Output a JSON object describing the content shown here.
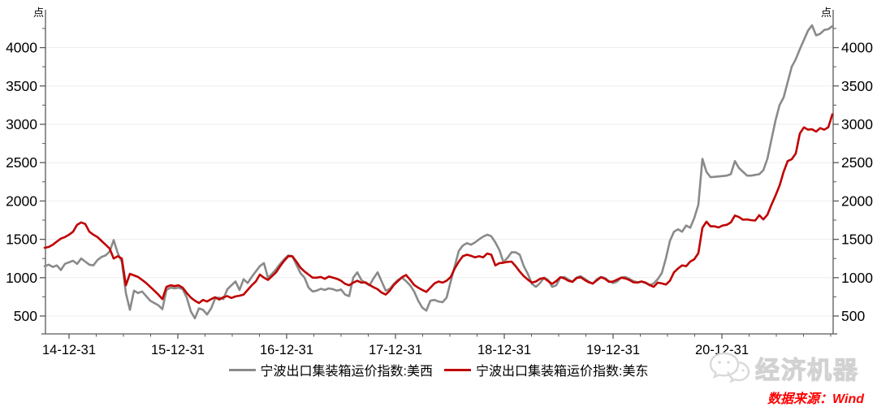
{
  "chart_data": {
    "type": "line",
    "title": "",
    "unit_label": "点",
    "xlabel": "",
    "ylabel": "点",
    "grid": "horizontal-faint",
    "legend_position": "bottom",
    "y_ticks": [
      500,
      1000,
      1500,
      2000,
      2500,
      3000,
      3500,
      4000
    ],
    "y_minor_step": 250,
    "ylim": [
      170,
      4460
    ],
    "y_axis_mirrored": true,
    "x_tick_labels": [
      "14-12-31",
      "15-12-31",
      "16-12-31",
      "17-12-31",
      "18-12-31",
      "19-12-31",
      "20-12-31"
    ],
    "x_tick_years": [
      2015,
      2016,
      2017,
      2018,
      2019,
      2020,
      2021
    ],
    "x_minor_step_years": 0.25,
    "x_start_year": 2014.75,
    "x_end_year": 2022.02,
    "x_step_years": 0.0375,
    "series": [
      {
        "name": "宁波出口集装箱运价指数:美西",
        "color": "#8a8a8a",
        "values": [
          1150,
          1170,
          1140,
          1160,
          1100,
          1180,
          1200,
          1220,
          1180,
          1250,
          1210,
          1170,
          1160,
          1230,
          1270,
          1290,
          1340,
          1490,
          1320,
          1210,
          800,
          580,
          830,
          800,
          820,
          760,
          700,
          670,
          640,
          590,
          840,
          870,
          860,
          870,
          850,
          740,
          560,
          470,
          600,
          580,
          520,
          600,
          730,
          740,
          720,
          850,
          900,
          950,
          840,
          980,
          930,
          1010,
          1080,
          1150,
          1190,
          1000,
          1050,
          1110,
          1180,
          1240,
          1290,
          1280,
          1170,
          1060,
          1000,
          870,
          820,
          830,
          855,
          840,
          860,
          850,
          830,
          845,
          780,
          760,
          1000,
          1070,
          970,
          930,
          900,
          990,
          1070,
          950,
          830,
          855,
          920,
          970,
          1000,
          955,
          900,
          820,
          700,
          610,
          570,
          700,
          710,
          690,
          680,
          740,
          950,
          1150,
          1350,
          1420,
          1450,
          1430,
          1460,
          1500,
          1535,
          1560,
          1540,
          1460,
          1360,
          1200,
          1260,
          1330,
          1330,
          1300,
          1150,
          1050,
          920,
          880,
          930,
          1000,
          970,
          880,
          900,
          1000,
          1010,
          975,
          950,
          1000,
          1020,
          985,
          950,
          920,
          980,
          1010,
          995,
          955,
          930,
          950,
          1000,
          1010,
          985,
          955,
          940,
          950,
          930,
          900,
          925,
          980,
          1060,
          1250,
          1480,
          1600,
          1630,
          1600,
          1680,
          1650,
          1780,
          1950,
          2550,
          2380,
          2310,
          2315,
          2320,
          2325,
          2330,
          2350,
          2520,
          2430,
          2380,
          2330,
          2330,
          2340,
          2350,
          2400,
          2550,
          2800,
          3050,
          3250,
          3350,
          3550,
          3750,
          3850,
          3980,
          4100,
          4220,
          4290,
          4160,
          4180,
          4230,
          4240,
          4280
        ]
      },
      {
        "name": "宁波出口集装箱运价指数:美东",
        "color": "#c00000",
        "values": [
          1390,
          1400,
          1430,
          1470,
          1510,
          1530,
          1560,
          1600,
          1690,
          1720,
          1700,
          1600,
          1560,
          1530,
          1480,
          1430,
          1380,
          1250,
          1280,
          1250,
          900,
          1050,
          1030,
          1010,
          970,
          930,
          880,
          830,
          780,
          720,
          880,
          900,
          890,
          900,
          870,
          800,
          740,
          700,
          670,
          710,
          690,
          720,
          745,
          715,
          745,
          760,
          735,
          755,
          765,
          780,
          840,
          900,
          950,
          1040,
          1000,
          970,
          1020,
          1070,
          1150,
          1220,
          1280,
          1280,
          1210,
          1130,
          1080,
          1040,
          1000,
          1000,
          1010,
          985,
          1015,
          1000,
          985,
          960,
          920,
          900,
          935,
          960,
          935,
          940,
          905,
          875,
          850,
          805,
          780,
          830,
          905,
          955,
          1005,
          1035,
          975,
          905,
          870,
          840,
          815,
          870,
          925,
          950,
          935,
          960,
          1010,
          1120,
          1210,
          1280,
          1300,
          1285,
          1265,
          1280,
          1265,
          1315,
          1300,
          1160,
          1190,
          1195,
          1205,
          1210,
          1150,
          1080,
          1020,
          975,
          935,
          950,
          985,
          995,
          955,
          920,
          955,
          1005,
          990,
          960,
          945,
          995,
          1005,
          970,
          940,
          925,
          965,
          1005,
          985,
          945,
          950,
          975,
          1000,
          990,
          970,
          940,
          935,
          950,
          935,
          905,
          880,
          935,
          925,
          910,
          960,
          1070,
          1120,
          1160,
          1150,
          1210,
          1240,
          1320,
          1650,
          1730,
          1670,
          1670,
          1655,
          1680,
          1690,
          1720,
          1810,
          1790,
          1755,
          1760,
          1750,
          1745,
          1815,
          1760,
          1820,
          1950,
          2070,
          2200,
          2380,
          2520,
          2545,
          2620,
          2880,
          2960,
          2930,
          2935,
          2905,
          2950,
          2930,
          2960,
          3130
        ]
      }
    ]
  },
  "legend": {
    "west_label": "宁波出口集装箱运价指数:美西",
    "east_label": "宁波出口集装箱运价指数:美东"
  },
  "footer": {
    "watermark_text": "经济机器",
    "source_text": "数据来源：Wind"
  },
  "colors": {
    "west_line": "#8a8a8a",
    "east_line": "#c00000",
    "axis": "#595959",
    "grid": "#ededed",
    "source_red": "#fe0000",
    "watermark_gray": "#d9d9d9"
  }
}
